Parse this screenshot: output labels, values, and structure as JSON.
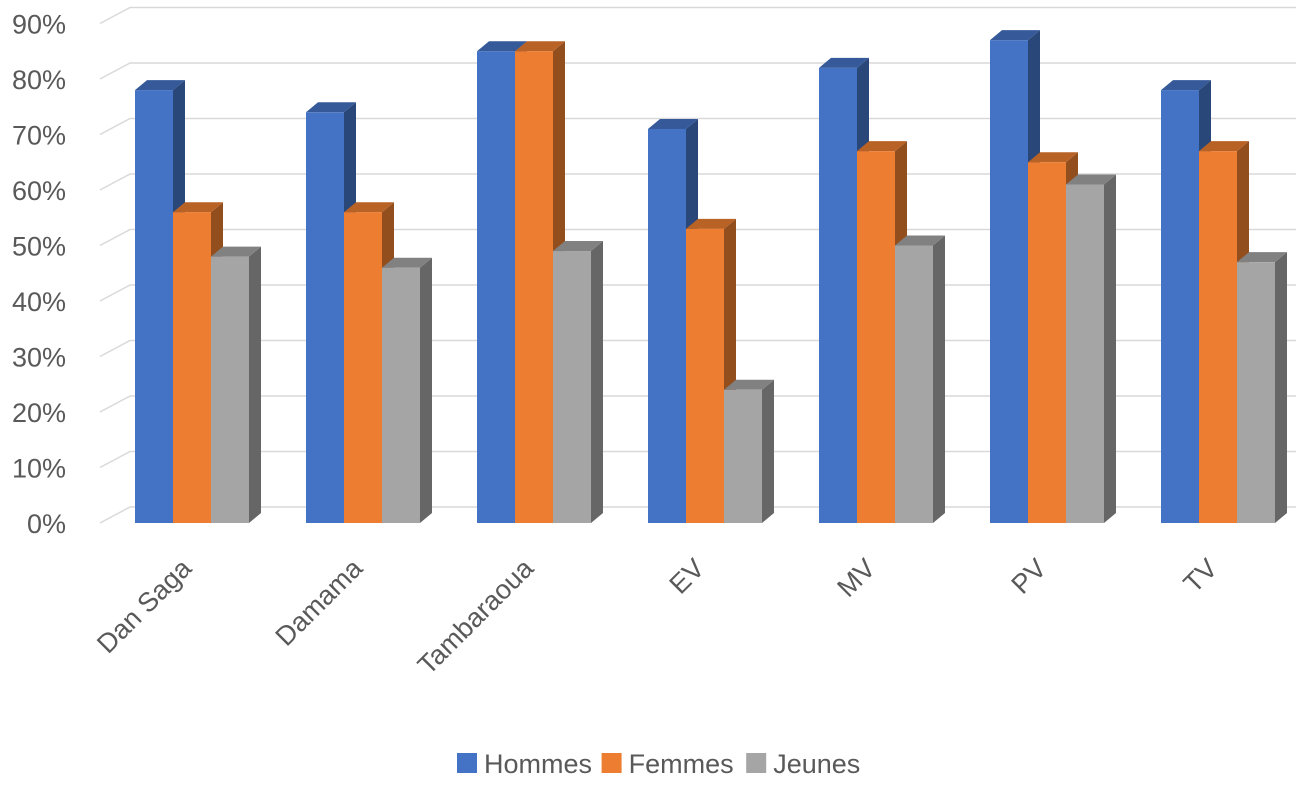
{
  "chart_data": {
    "type": "bar",
    "style": "3d-clustered-column",
    "title": "",
    "xlabel": "",
    "ylabel": "",
    "categories": [
      "Dan Saga",
      "Damama",
      "Tambaraoua",
      "EV",
      "MV",
      "PV",
      "TV"
    ],
    "series": [
      {
        "name": "Hommes",
        "color": "#4472C4",
        "values": [
          78,
          74,
          85,
          71,
          82,
          87,
          78
        ]
      },
      {
        "name": "Femmes",
        "color": "#ED7D31",
        "values": [
          56,
          56,
          85,
          53,
          67,
          65,
          67
        ]
      },
      {
        "name": "Jeunes",
        "color": "#A5A5A5",
        "values": [
          48,
          46,
          49,
          24,
          50,
          61,
          47
        ]
      }
    ],
    "ylim": [
      0,
      90
    ],
    "yticks": [
      "0%",
      "10%",
      "20%",
      "30%",
      "40%",
      "50%",
      "60%",
      "70%",
      "80%",
      "90%"
    ],
    "grid": true,
    "legend_position": "bottom"
  }
}
